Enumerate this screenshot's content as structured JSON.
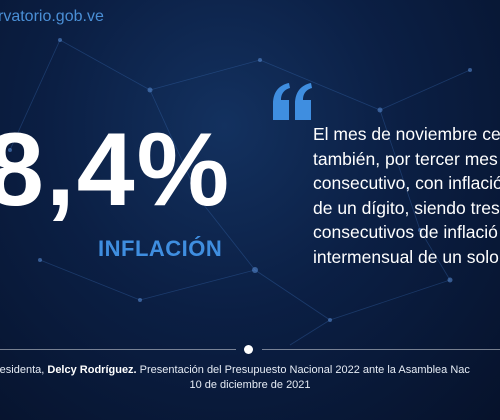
{
  "header": {
    "site_text": "rvatorio.gob.ve"
  },
  "highlight": {
    "value": "8,4%",
    "label": "INFLACIÓN"
  },
  "quote": {
    "lines": [
      "El mes de noviembre ce",
      "también, por tercer mes",
      "consecutivo, con inflació",
      "de un dígito, siendo tres",
      "consecutivos de inflació",
      "intermensual de un solo"
    ]
  },
  "caption": {
    "prefix": "residenta, ",
    "speaker": "Delcy Rodríguez.",
    "event": " Presentación del Presupuesto Nacional 2022 ante la Asamblea Nac",
    "date": "10 de diciembre de 2021"
  },
  "colors": {
    "accent": "#3f8ee0",
    "background": "#0b1f44"
  }
}
